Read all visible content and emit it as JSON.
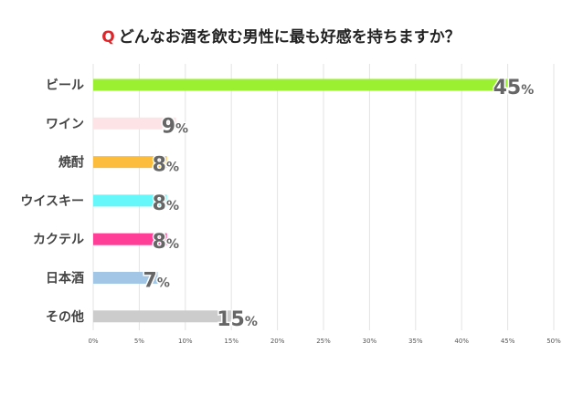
{
  "title": {
    "prefix": "Q",
    "text": "どんなお酒を飲む男性に最も好感を持ちますか？"
  },
  "chart_data": {
    "type": "bar",
    "orientation": "horizontal",
    "categories": [
      "ビール",
      "ワイン",
      "焼酎",
      "ウイスキー",
      "カクテル",
      "日本酒",
      "その他"
    ],
    "values": [
      45,
      9,
      8,
      8,
      8,
      7,
      15
    ],
    "value_suffix": "%",
    "colors": [
      "#9bf032",
      "#fde3e6",
      "#fdbd3c",
      "#66f7fa",
      "#ff3e97",
      "#a2c6e6",
      "#cccccc"
    ],
    "xlim": [
      0,
      50
    ],
    "xticks": [
      0,
      5,
      10,
      15,
      20,
      25,
      30,
      35,
      40,
      45,
      50
    ],
    "tick_suffix": "%",
    "grid": true,
    "legend": "none"
  }
}
